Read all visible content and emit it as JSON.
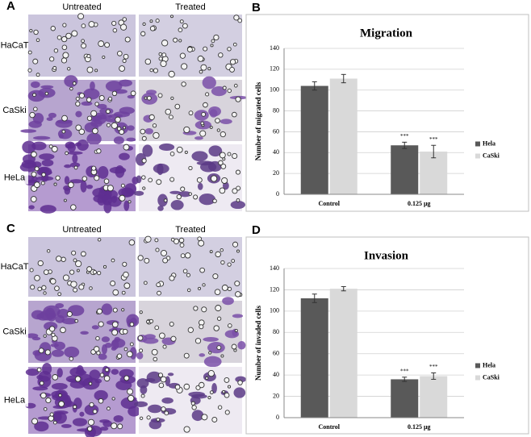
{
  "figure": {
    "letters": [
      "A",
      "B",
      "C",
      "D"
    ],
    "image_panels": [
      {
        "columns": [
          "Untreated",
          "Treated"
        ],
        "rows": [
          "HaCaT",
          "CaSki",
          "HeLa"
        ]
      },
      {
        "columns": [
          "Untreated",
          "Treated"
        ],
        "rows": [
          "HaCaT",
          "CaSki",
          "HeLa"
        ]
      }
    ]
  },
  "chart_data": [
    {
      "type": "bar",
      "title": "Migration",
      "y_label": "Number of migrated cells",
      "categories": [
        "Control",
        "0.125 µg"
      ],
      "series": [
        {
          "name": "Hela",
          "color": "#595959",
          "values": [
            104,
            47
          ],
          "errors": [
            4,
            3
          ],
          "significance": [
            null,
            "***"
          ]
        },
        {
          "name": "CaSki",
          "color": "#d9d9d9",
          "values": [
            111,
            41
          ],
          "errors": [
            4,
            6
          ],
          "significance": [
            null,
            "***"
          ]
        }
      ],
      "ylim": [
        0,
        140
      ],
      "yticks": [
        0,
        20,
        40,
        60,
        80,
        100,
        120,
        140
      ],
      "grid": true,
      "legend": "right"
    },
    {
      "type": "bar",
      "title": "Invasion",
      "y_label": "Number of invaded cells",
      "categories": [
        "Control",
        "0.125 µg"
      ],
      "series": [
        {
          "name": "Hela",
          "color": "#595959",
          "values": [
            112,
            36
          ],
          "errors": [
            4,
            2
          ],
          "significance": [
            null,
            "***"
          ]
        },
        {
          "name": "CaSki",
          "color": "#d9d9d9",
          "values": [
            121,
            39
          ],
          "errors": [
            2,
            3
          ],
          "significance": [
            null,
            "***"
          ]
        }
      ],
      "ylim": [
        0,
        140
      ],
      "yticks": [
        0,
        20,
        40,
        60,
        80,
        100,
        120,
        140
      ],
      "grid": true,
      "legend": "right"
    }
  ]
}
